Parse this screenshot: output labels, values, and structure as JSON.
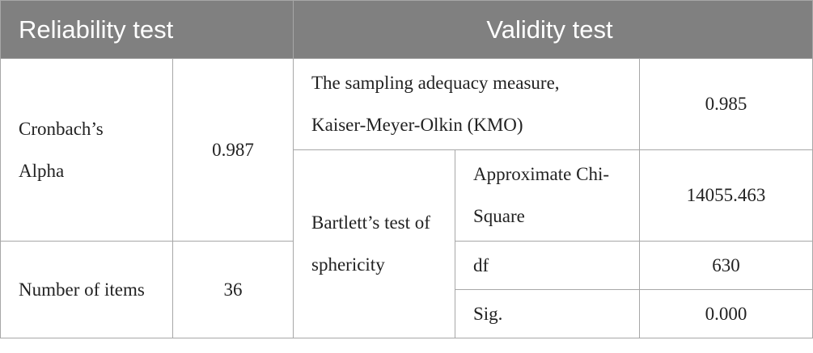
{
  "table": {
    "header": [
      "Reliability test",
      "Validity test"
    ],
    "reliability": [
      [
        "Cronbach’s Alpha",
        "0.987"
      ],
      [
        "Number of items",
        "36"
      ]
    ],
    "validity": {
      "kmo": {
        "label": "The sampling adequacy measure, Kaiser-Meyer-Olkin (KMO)",
        "value": "0.985"
      },
      "bartlett": {
        "label": "Bartlett’s test of sphericity",
        "rows": [
          [
            "Approximate Chi-Square",
            "14055.463"
          ],
          [
            "df",
            "630"
          ],
          [
            "Sig.",
            "0.000"
          ]
        ]
      }
    }
  }
}
